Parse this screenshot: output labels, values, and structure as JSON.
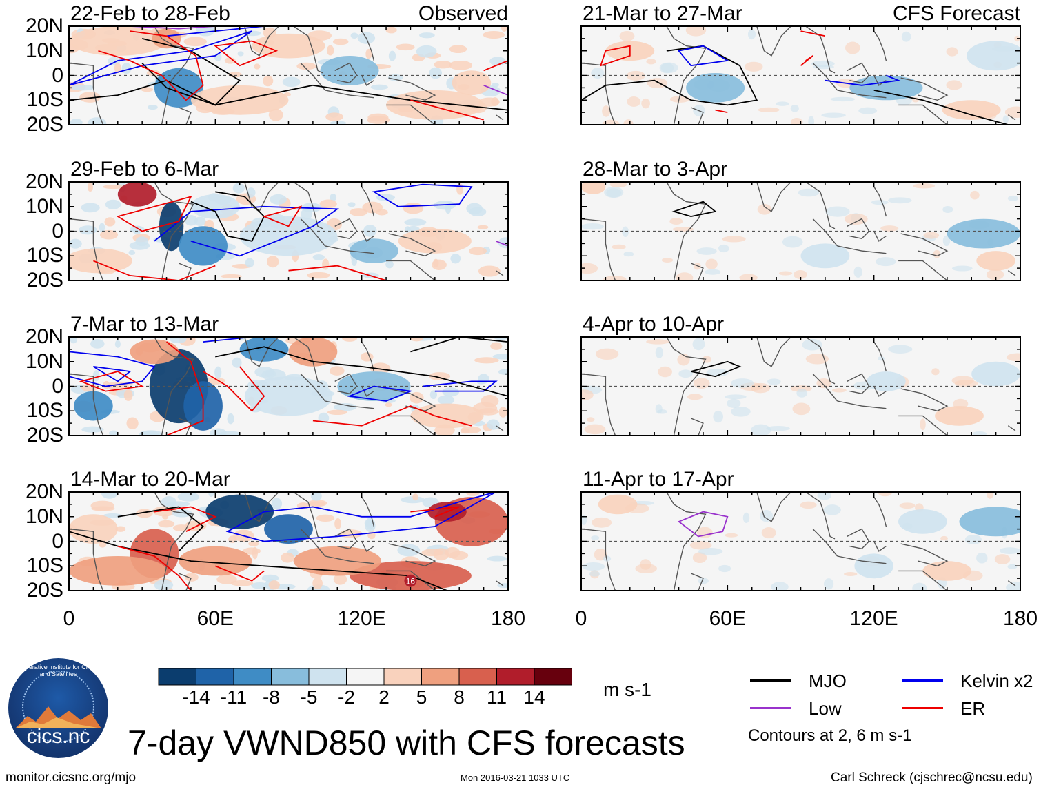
{
  "chart_data": {
    "type": "heatmap",
    "title": "7-day VWND850 with CFS forecasts",
    "variable": "VWND850",
    "units": "m s-1",
    "x_axis": {
      "ticks": [
        "0",
        "60E",
        "120E",
        "180"
      ],
      "range": [
        0,
        180
      ]
    },
    "y_axis": {
      "ticks": [
        "20N",
        "10N",
        "0",
        "10S",
        "20S"
      ],
      "range": [
        -20,
        20
      ]
    },
    "colorbar": {
      "tick_labels": [
        "-14",
        "-11",
        "-8",
        "-5",
        "-2",
        "2",
        "5",
        "8",
        "11",
        "14"
      ],
      "colors": [
        "#0b3d6e",
        "#1f63a8",
        "#3f8cc5",
        "#88bddc",
        "#cfe3ef",
        "#f5f5f5",
        "#f9d2bd",
        "#efa07f",
        "#d8604e",
        "#b11d2b",
        "#67000d"
      ]
    },
    "legend": {
      "entries": [
        {
          "name": "MJO",
          "color": "#000000"
        },
        {
          "name": "Kelvin x2",
          "color": "#0000ee"
        },
        {
          "name": "Low",
          "color": "#9932cc"
        },
        {
          "name": "ER",
          "color": "#ee0000"
        }
      ],
      "note": "Contours at 2, 6 m s-1"
    },
    "columns": [
      {
        "label": "Observed",
        "panels": [
          "22-Feb to 28-Feb",
          "29-Feb to 6-Mar",
          "7-Mar to 13-Mar",
          "14-Mar to 20-Mar"
        ],
        "marker_labels": [
          "16"
        ]
      },
      {
        "label": "CFS Forecast",
        "panels": [
          "21-Mar to 27-Mar",
          "28-Mar to 3-Apr",
          "4-Apr to 10-Apr",
          "11-Apr to 17-Apr"
        ]
      }
    ]
  },
  "logo": {
    "text": "cics.nc",
    "ring_text": "Cooperative Institute for Climate and Satellites"
  },
  "footer": {
    "left": "monitor.cicsnc.org/mjo",
    "center": "Mon 2016-03-21 1033 UTC",
    "right": "Carl Schreck (cjschrec@ncsu.edu)"
  }
}
